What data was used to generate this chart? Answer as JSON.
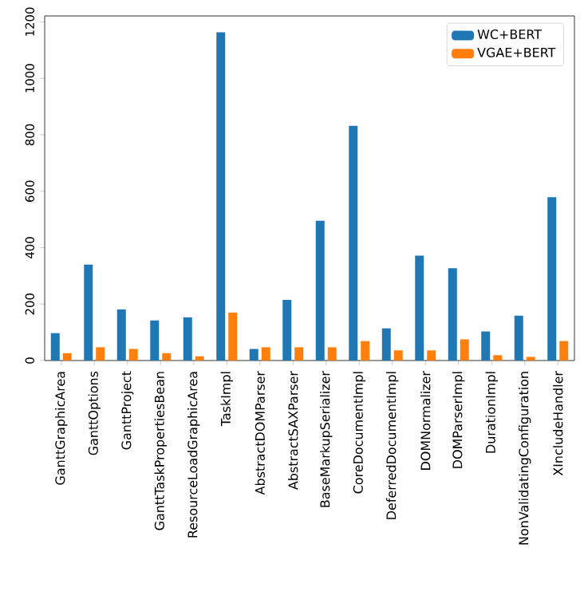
{
  "chart_data": {
    "type": "bar",
    "categories": [
      "GanttGraphicArea",
      "GanttOptions",
      "GanttProject",
      "GanttTaskPropertiesBean",
      "ResourceLoadGraphicArea",
      "TaskImpl",
      "AbstractDOMParser",
      "AbstractSAXParser",
      "BaseMarkupSerializer",
      "CoreDocumentImpl",
      "DeferredDocumentImpl",
      "DOMNormalizer",
      "DOMParserImpl",
      "DurationImpl",
      "NonValidatingConfiguration",
      "XIncludeHandler"
    ],
    "series": [
      {
        "name": "WC+BERT",
        "color": "#1f77b4",
        "values": [
          97,
          340,
          181,
          142,
          153,
          1163,
          41,
          215,
          495,
          832,
          114,
          372,
          327,
          103,
          159,
          579
        ]
      },
      {
        "name": "VGAE+BERT",
        "color": "#ff7f0e",
        "values": [
          26,
          47,
          41,
          26,
          15,
          170,
          47,
          47,
          47,
          69,
          36,
          36,
          75,
          19,
          13,
          69
        ]
      }
    ],
    "ylim": [
      0,
      1221
    ],
    "yticks": [
      0,
      200,
      400,
      600,
      800,
      1000,
      1200
    ],
    "legend": "top right"
  }
}
